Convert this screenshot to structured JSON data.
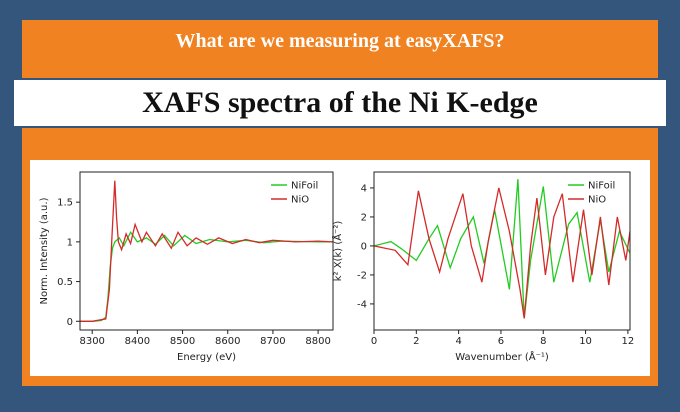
{
  "header": {
    "subtitle": "What are we measuring at easyXAFS?",
    "title": "XAFS spectra of the Ni K-edge"
  },
  "chart_data": [
    {
      "type": "line",
      "xlabel": "Energy (eV)",
      "ylabel": "Norm. Intensity (a.u.)",
      "xlim": [
        8273,
        8833
      ],
      "xticks": [
        8300,
        8400,
        8500,
        8600,
        8700,
        8800
      ],
      "ylim": [
        -0.11,
        1.88
      ],
      "yticks": [
        0,
        0.5,
        1,
        1.5
      ],
      "legend": "upper right",
      "series": [
        {
          "name": "NiFoil",
          "color": "#22cc22",
          "x": [
            8273,
            8300,
            8320,
            8330,
            8335,
            8340,
            8345,
            8350,
            8360,
            8370,
            8385,
            8400,
            8420,
            8440,
            8460,
            8480,
            8505,
            8530,
            8560,
            8600,
            8640,
            8680,
            8720,
            8800,
            8833
          ],
          "values": [
            0,
            0,
            0.01,
            0.05,
            0.3,
            0.7,
            0.92,
            1.0,
            1.05,
            0.95,
            1.12,
            1.0,
            1.05,
            0.97,
            1.08,
            0.95,
            1.08,
            0.98,
            1.03,
            1.0,
            1.02,
            0.99,
            1.01,
            1.0,
            1.0
          ]
        },
        {
          "name": "NiO",
          "color": "#d42a2a",
          "x": [
            8273,
            8300,
            8330,
            8338,
            8344,
            8350,
            8354,
            8358,
            8365,
            8375,
            8385,
            8395,
            8410,
            8420,
            8440,
            8455,
            8475,
            8490,
            8510,
            8530,
            8555,
            8580,
            8610,
            8640,
            8670,
            8700,
            8750,
            8800,
            8833
          ],
          "values": [
            0,
            0,
            0.03,
            0.4,
            1.1,
            1.77,
            1.3,
            1.0,
            0.9,
            1.1,
            0.98,
            1.22,
            1.0,
            1.12,
            0.95,
            1.1,
            0.92,
            1.12,
            0.95,
            1.05,
            0.97,
            1.05,
            0.98,
            1.03,
            0.99,
            1.02,
            1.0,
            1.01,
            1.0
          ]
        }
      ]
    },
    {
      "type": "line",
      "xlabel": "Wavenumber (Å⁻¹)",
      "ylabel": "k² X(k)  (Å⁻²)",
      "xlim": [
        0,
        12.1
      ],
      "xticks": [
        0,
        2,
        4,
        6,
        8,
        10,
        12
      ],
      "ylim": [
        -5.8,
        5.1
      ],
      "yticks": [
        -4,
        -2,
        0,
        2,
        4
      ],
      "legend": "upper right",
      "series": [
        {
          "name": "NiFoil",
          "color": "#22cc22",
          "x": [
            0,
            0.8,
            1.3,
            2,
            2.6,
            3,
            3.6,
            4.1,
            4.7,
            5.2,
            5.7,
            6.4,
            6.8,
            7.1,
            7.4,
            8,
            8.5,
            9.2,
            9.6,
            10.2,
            10.7,
            11.1,
            11.6,
            12.1
          ],
          "values": [
            0,
            0.3,
            -0.2,
            -1,
            0.5,
            1.4,
            -1.5,
            0.5,
            2,
            -1.2,
            2.5,
            -3,
            4.6,
            -5,
            -1,
            4.1,
            -2.5,
            1.5,
            2.3,
            -2.5,
            1.8,
            -1.8,
            1,
            -0.5
          ]
        },
        {
          "name": "NiO",
          "color": "#d42a2a",
          "x": [
            0,
            1,
            1.6,
            2.1,
            2.6,
            3.1,
            3.5,
            4.2,
            4.6,
            5.1,
            5.4,
            5.9,
            6.4,
            6.9,
            7.1,
            7.4,
            7.7,
            8.1,
            8.5,
            8.9,
            9.4,
            9.9,
            10.3,
            10.7,
            11.1,
            11.5,
            11.9,
            12.1
          ],
          "values": [
            0,
            -0.3,
            -1.3,
            3.8,
            0.5,
            -1.8,
            0.5,
            3.6,
            0,
            -2.5,
            0.3,
            4,
            1,
            -3,
            -5,
            0,
            3.3,
            -2,
            2,
            3.6,
            -2.5,
            2.5,
            -2,
            2,
            -2.7,
            2,
            -1,
            1
          ]
        }
      ]
    }
  ]
}
